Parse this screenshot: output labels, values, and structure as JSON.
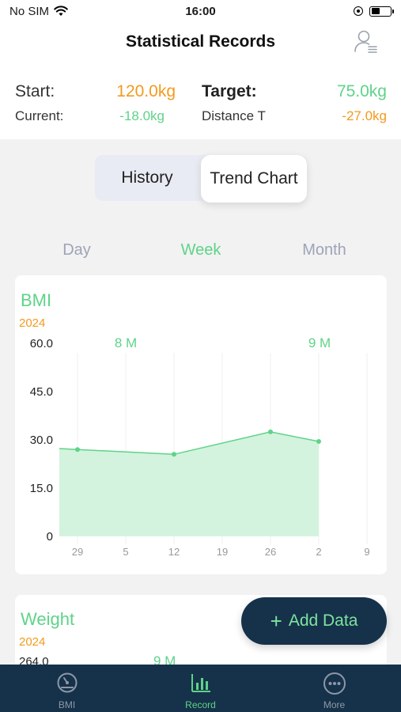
{
  "status_bar": {
    "carrier": "No SIM",
    "time": "16:00"
  },
  "header": {
    "title": "Statistical Records"
  },
  "summary": {
    "start_label": "Start:",
    "start_value": "120.0kg",
    "target_label": "Target:",
    "target_value": "75.0kg",
    "current_label": "Current:",
    "current_value": "-18.0kg",
    "distance_label": "Distance T",
    "distance_value": "-27.0kg"
  },
  "segment": {
    "history": "History",
    "trend": "Trend Chart",
    "selected": "Trend Chart"
  },
  "periods": {
    "day": "Day",
    "week": "Week",
    "month": "Month",
    "selected": "Week"
  },
  "chart_data": [
    {
      "type": "area",
      "title": "BMI",
      "subtitle": "2024",
      "y_ticks": [
        "60.0",
        "45.0",
        "30.0",
        "15.0",
        "0"
      ],
      "ylim": [
        0,
        60
      ],
      "x_ticks": [
        "29",
        "5",
        "12",
        "19",
        "26",
        "2",
        "9"
      ],
      "month_labels": [
        "8 M",
        "9 M"
      ],
      "points": [
        {
          "x": "29",
          "y": 27
        },
        {
          "x": "12",
          "y": 25.5
        },
        {
          "x": "26",
          "y": 32.5
        },
        {
          "x": "2",
          "y": 29.5
        }
      ],
      "start_value": 27.3,
      "color": "#5fd389"
    },
    {
      "type": "area",
      "title": "Weight",
      "subtitle": "2024",
      "y_ticks": [
        "264.0"
      ],
      "month_labels": [
        "9 M"
      ]
    }
  ],
  "fab": {
    "plus": "+",
    "label": "Add Data"
  },
  "tabbar": {
    "items": [
      {
        "label": "BMI",
        "icon": "gauge-icon"
      },
      {
        "label": "Record",
        "icon": "bar-chart-icon"
      },
      {
        "label": "More",
        "icon": "more-icon"
      }
    ],
    "active": "Record"
  },
  "colors": {
    "accent_green": "#5fd389",
    "accent_orange": "#f39a1e",
    "navy": "#16324a"
  }
}
